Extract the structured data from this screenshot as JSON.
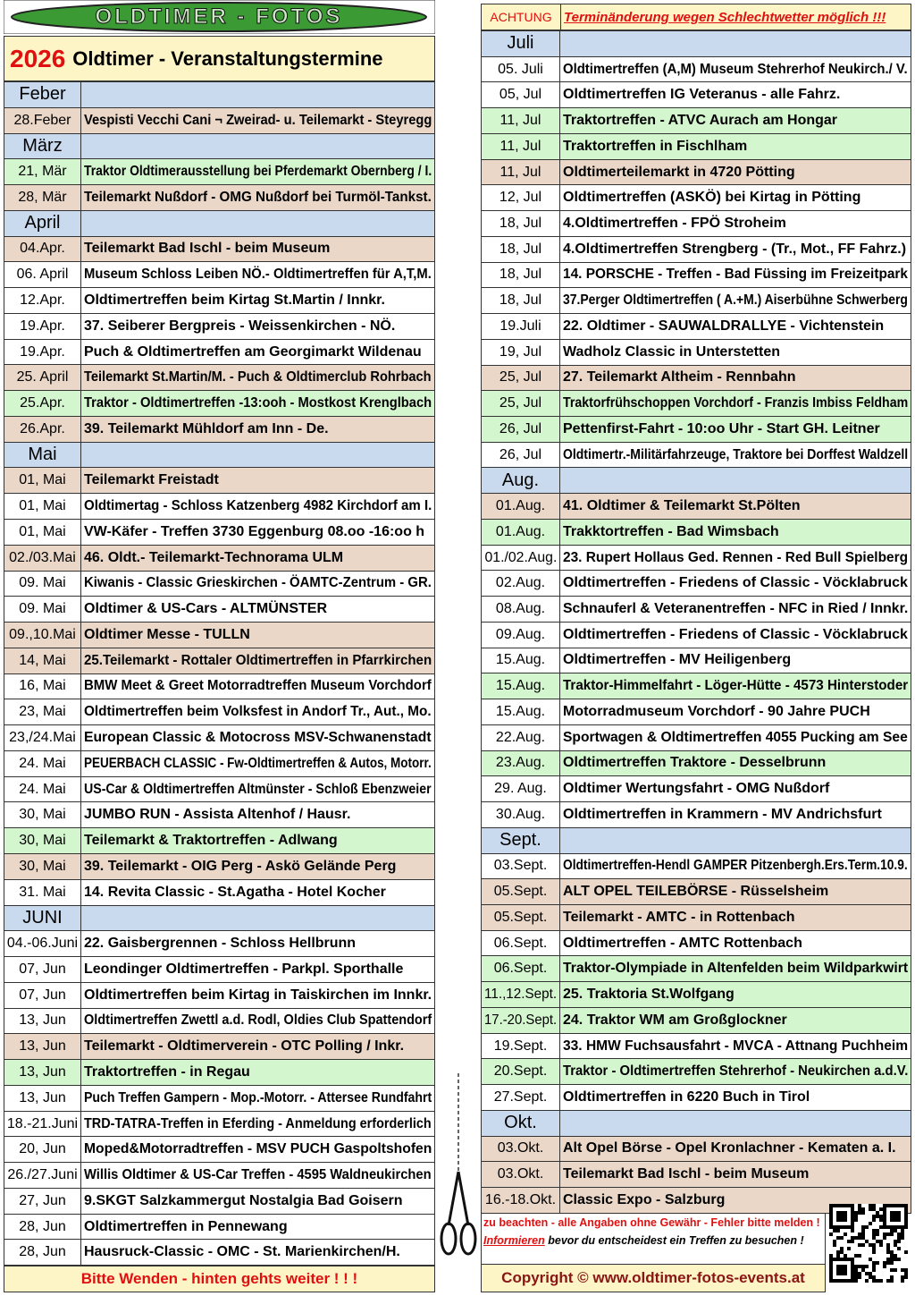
{
  "logo": "OLDTIMER - FOTOS",
  "header": {
    "year": "2026",
    "title": "Oldtimer - Veranstaltungstermine"
  },
  "notice": {
    "label": "ACHTUNG",
    "text": "Terminänderung wegen Schlechtwetter möglich !!!"
  },
  "left": [
    {
      "month": "Feber"
    },
    {
      "date": "28.Feber",
      "event": "Vespisti Vecchi Cani ¬ Zweirad- u. Teilemarkt - Steyregg",
      "color": "beige"
    },
    {
      "month": "März"
    },
    {
      "date": "21, Mär",
      "event": "Traktor Oldtimerausstellung bei Pferdemarkt Obernberg / I.",
      "color": "green"
    },
    {
      "date": "28, Mär",
      "event": "Teilemarkt Nußdorf - OMG Nußdorf bei Turmöl-Tankst.",
      "color": "beige"
    },
    {
      "month": "April"
    },
    {
      "date": "04.Apr.",
      "event": "Teilemarkt Bad Ischl - beim Museum",
      "color": "beige"
    },
    {
      "date": "06. April",
      "event": "Museum Schloss Leiben NÖ.- Oldtimertreffen für A,T,M."
    },
    {
      "date": "12.Apr.",
      "event": "Oldtimertreffen beim Kirtag St.Martin / Innkr."
    },
    {
      "date": "19.Apr.",
      "event": "37. Seiberer Bergpreis - Weissenkirchen - NÖ."
    },
    {
      "date": "19.Apr.",
      "event": "Puch & Oldtimertreffen am Georgimarkt Wildenau"
    },
    {
      "date": "25. April",
      "event": "Teilemarkt St.Martin/M. - Puch & Oldtimerclub Rohrbach",
      "color": "beige"
    },
    {
      "date": "25.Apr.",
      "event": "Traktor - Oldtimertreffen -13:ooh - Mostkost Krenglbach",
      "color": "green"
    },
    {
      "date": "26.Apr.",
      "event": "39. Teilemarkt Mühldorf am Inn - De.",
      "color": "beige"
    },
    {
      "month": "Mai"
    },
    {
      "date": "01, Mai",
      "event": "Teilemarkt  Freistadt",
      "color": "beige"
    },
    {
      "date": "01, Mai",
      "event": "Oldtimertag - Schloss Katzenberg 4982 Kirchdorf am I."
    },
    {
      "date": "01, Mai",
      "event": "VW-Käfer - Treffen 3730 Eggenburg 08.oo -16:oo h"
    },
    {
      "date": "02./03.Mai",
      "event": "46. Oldt.- Teilemarkt-Technorama ULM",
      "color": "beige"
    },
    {
      "date": "09. Mai",
      "event": "Kiwanis - Classic  Grieskirchen - ÖAMTC-Zentrum - GR."
    },
    {
      "date": "09. Mai",
      "event": "Oldtimer & US-Cars - ALTMÜNSTER"
    },
    {
      "date": "09.,10.Mai",
      "event": "Oldtimer Messe - TULLN",
      "color": "beige"
    },
    {
      "date": "14, Mai",
      "event": "25.Teilemarkt - Rottaler Oldtimertreffen in Pfarrkirchen",
      "color": "beige"
    },
    {
      "date": "16, Mai",
      "event": "BMW Meet & Greet Motorradtreffen Museum Vorchdorf"
    },
    {
      "date": "23, Mai",
      "event": "Oldtimertreffen beim Volksfest in Andorf  Tr., Aut., Mo."
    },
    {
      "date": "23,/24.Mai",
      "event": "European Classic & Motocross MSV-Schwanenstadt"
    },
    {
      "date": "24. Mai",
      "event": "PEUERBACH CLASSIC - Fw-Oldtimertreffen & Autos, Motorr."
    },
    {
      "date": "24. Mai",
      "event": "US-Car & Oldtimertreffen Altmünster - Schloß Ebenzweier"
    },
    {
      "date": "30, Mai",
      "event": "JUMBO RUN - Assista Altenhof / Hausr."
    },
    {
      "date": "30, Mai",
      "event": "Teilemarkt & Traktortreffen - Adlwang",
      "color": "green"
    },
    {
      "date": "30, Mai",
      "event": "39. Teilemarkt - OIG Perg - Askö Gelände Perg",
      "color": "beige"
    },
    {
      "date": "31. Mai",
      "event": "14. Revita Classic - St.Agatha - Hotel Kocher"
    },
    {
      "month": "JUNI"
    },
    {
      "date": "04.-06.Juni",
      "event": "22. Gaisbergrennen - Schloss Hellbrunn"
    },
    {
      "date": "07, Jun",
      "event": "Leondinger Oldtimertreffen - Parkpl. Sporthalle"
    },
    {
      "date": "07, Jun",
      "event": "Oldtimertreffen beim Kirtag in Taiskirchen im Innkr."
    },
    {
      "date": "13, Jun",
      "event": "Oldtimertreffen Zwettl a.d. Rodl, Oldies Club Spattendorf"
    },
    {
      "date": "13, Jun",
      "event": "Teilemarkt - Oldtimerverein -  OTC Polling / Inkr.",
      "color": "beige"
    },
    {
      "date": "13, Jun",
      "event": "Traktortreffen - in Regau",
      "color": "green"
    },
    {
      "date": "13, Jun",
      "event": "Puch Treffen Gampern - Mop.-Motorr. - Attersee Rundfahrt"
    },
    {
      "date": "18.-21.Juni",
      "event": "TRD-TATRA-Treffen in Eferding - Anmeldung erforderlich"
    },
    {
      "date": "20, Jun",
      "event": "Moped&Motorradtreffen - MSV PUCH Gaspoltshofen"
    },
    {
      "date": "26./27.Juni",
      "event": "Willis Oldtimer & US-Car Treffen - 4595 Waldneukirchen"
    },
    {
      "date": "27, Jun",
      "event": "9.SKGT Salzkammergut Nostalgia Bad Goisern"
    },
    {
      "date": "28, Jun",
      "event": "Oldtimertreffen in Pennewang"
    },
    {
      "date": "28, Jun",
      "event": "Hausruck-Classic - OMC - St. Marienkirchen/H."
    }
  ],
  "right": [
    {
      "month": "Juli"
    },
    {
      "date": "05. Juli",
      "event": "Oldtimertreffen (A,M) Museum  Stehrerhof Neukirch./ V."
    },
    {
      "date": "05, Jul",
      "event": "Oldtimertreffen IG Veteranus - alle Fahrz."
    },
    {
      "date": "11, Jul",
      "event": "Traktortreffen - ATVC Aurach am Hongar",
      "color": "green"
    },
    {
      "date": "11, Jul",
      "event": "Traktortreffen in Fischlham",
      "color": "green"
    },
    {
      "date": "11, Jul",
      "event": "Oldtimerteilemarkt in 4720 Pötting",
      "color": "beige"
    },
    {
      "date": "12, Jul",
      "event": "Oldtimertreffen (ASKÖ) bei Kirtag in Pötting"
    },
    {
      "date": "18, Jul",
      "event": "4.Oldtimertreffen - FPÖ Stroheim"
    },
    {
      "date": "18, Jul",
      "event": "4.Oldtimertreffen Strengberg - (Tr., Mot., FF Fahrz.)"
    },
    {
      "date": "18, Jul",
      "event": "14. PORSCHE - Treffen - Bad Füssing im Freizeitpark"
    },
    {
      "date": "18, Jul",
      "event": "37.Perger Oldtimertreffen ( A.+M.) Aiserbühne Schwerberg"
    },
    {
      "date": "19.Juli",
      "event": "22. Oldtimer - SAUWALDRALLYE - Vichtenstein"
    },
    {
      "date": "19, Jul",
      "event": " Wadholz Classic in Unterstetten"
    },
    {
      "date": "25, Jul",
      "event": "27. Teilemarkt Altheim - Rennbahn",
      "color": "beige"
    },
    {
      "date": "25, Jul",
      "event": "Traktorfrühschoppen Vorchdorf - Franzis Imbiss Feldham",
      "color": "green"
    },
    {
      "date": "26, Jul",
      "event": "Pettenfirst-Fahrt - 10:oo Uhr - Start GH. Leitner",
      "color": "green"
    },
    {
      "date": "26, Jul",
      "event": "Oldtimertr.-Militärfahrzeuge, Traktore bei Dorffest Waldzell"
    },
    {
      "month": "Aug."
    },
    {
      "date": "01.Aug.",
      "event": " 41. Oldtimer & Teilemarkt St.Pölten",
      "color": "beige"
    },
    {
      "date": "01.Aug.",
      "event": "Trakktortreffen - Bad Wimsbach",
      "color": "green"
    },
    {
      "date": "01./02.Aug.",
      "event": "23. Rupert Hollaus Ged. Rennen - Red Bull Spielberg"
    },
    {
      "date": "02.Aug.",
      "event": "Oldtimertreffen - Friedens of Classic - Vöcklabruck"
    },
    {
      "date": "08.Aug.",
      "event": "Schnauferl & Veteranentreffen - NFC in Ried / Innkr."
    },
    {
      "date": "09.Aug.",
      "event": "Oldtimertreffen - Friedens of Classic - Vöcklabruck"
    },
    {
      "date": "15.Aug.",
      "event": "Oldtimertreffen - MV Heiligenberg"
    },
    {
      "date": "15.Aug.",
      "event": "Traktor-Himmelfahrt - Löger-Hütte - 4573 Hinterstoder",
      "color": "green"
    },
    {
      "date": "15.Aug.",
      "event": "Motorradmuseum Vorchdorf - 90  Jahre PUCH"
    },
    {
      "date": "22.Aug.",
      "event": "Sportwagen & Oldtimertreffen 4055 Pucking am See"
    },
    {
      "date": "23.Aug.",
      "event": "Oldtimertreffen Traktore - Desselbrunn",
      "color": "green"
    },
    {
      "date": "29. Aug.",
      "event": "Oldtimer Wertungsfahrt - OMG Nußdorf"
    },
    {
      "date": "30.Aug.",
      "event": "Oldtimertreffen in Krammern - MV Andrichsfurt"
    },
    {
      "month": "Sept."
    },
    {
      "date": "03.Sept.",
      "event": "Oldtimertreffen-Hendl GAMPER Pitzenbergh.Ers.Term.10.9."
    },
    {
      "date": "05.Sept.",
      "event": "ALT OPEL TEILEBÖRSE - Rüsselsheim",
      "color": "beige"
    },
    {
      "date": "05.Sept.",
      "event": "Teilemarkt - AMTC - in Rottenbach",
      "color": "beige"
    },
    {
      "date": "06.Sept.",
      "event": "Oldtimertreffen - AMTC Rottenbach"
    },
    {
      "date": "06.Sept.",
      "event": "Traktor-Olympiade in Altenfelden beim Wildparkwirt",
      "color": "green"
    },
    {
      "date": "11.,12.Sept.",
      "event": "25. Traktoria St.Wolfgang",
      "color": "green"
    },
    {
      "date": "17.-20.Sept.",
      "event": "24. Traktor WM am Großglockner",
      "color": "green"
    },
    {
      "date": "19.Sept.",
      "event": "33. HMW Fuchsausfahrt - MVCA - Attnang Puchheim"
    },
    {
      "date": "20.Sept.",
      "event": "Traktor - Oldtimertreffen Stehrerhof - Neukirchen a.d.V.",
      "color": "green"
    },
    {
      "date": "27.Sept.",
      "event": "Oldtimertreffen in 6220 Buch in Tirol"
    },
    {
      "month": "Okt."
    },
    {
      "date": "03.Okt.",
      "event": "Alt Opel Börse - Opel Kronlachner - Kematen a. I.",
      "color": "beige"
    },
    {
      "date": "03.Okt.",
      "event": "Teilemarkt Bad Ischl - beim Museum",
      "color": "beige"
    },
    {
      "date": "16.-18.Okt.",
      "event": "Classic Expo - Salzburg",
      "color": "beige"
    }
  ],
  "turn_over": "Bitte  Wenden  - hinten gehts weiter ! ! !",
  "footer": {
    "disclaimer": "zu beachten - alle Angaben ohne Gewähr - Fehler bitte melden !",
    "info_link": "Informieren",
    "info_text": "bevor du entscheidest ein Treffen zu besuchen !",
    "copyright": "Copyright ©  www.oldtimer-fotos-events.at"
  }
}
